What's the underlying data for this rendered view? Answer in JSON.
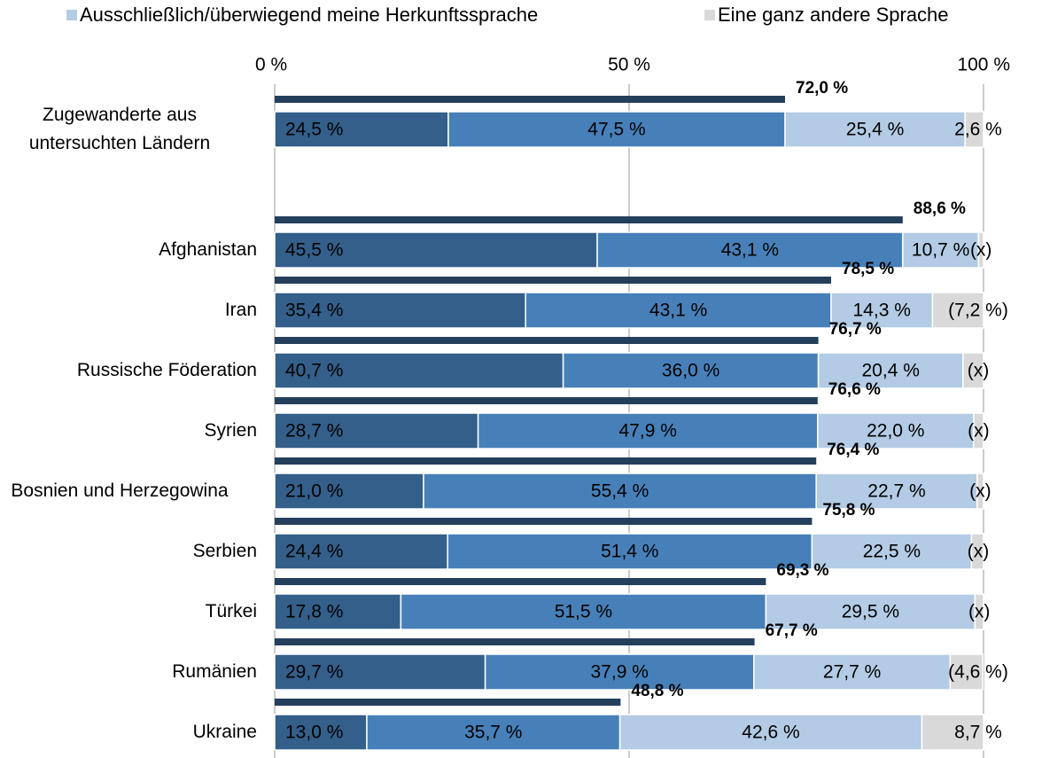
{
  "chart_data": {
    "type": "bar",
    "orientation": "horizontal",
    "stacked": true,
    "categories": [
      "Zugewanderte aus untersuchten Ländern",
      "Afghanistan",
      "Iran",
      "Russische Föderation",
      "Syrien",
      "Bosnien und Herzegowina",
      "Serbien",
      "Türkei",
      "Rumänien",
      "Ukraine"
    ],
    "series": [
      {
        "color": "#335f8a",
        "values": [
          24.5,
          45.5,
          35.4,
          40.7,
          28.7,
          21.0,
          24.4,
          17.8,
          29.7,
          13.0
        ],
        "value_labels": [
          "24,5 %",
          "45,5 %",
          "35,4 %",
          "40,7 %",
          "28,7 %",
          "21,0 %",
          "24,4 %",
          "17,8 %",
          "29,7 %",
          "13,0 %"
        ]
      },
      {
        "color": "#4780b9",
        "values": [
          47.5,
          43.1,
          43.1,
          36.0,
          47.9,
          55.4,
          51.4,
          51.5,
          37.9,
          35.7
        ],
        "value_labels": [
          "47,5 %",
          "43,1 %",
          "43,1 %",
          "36,0 %",
          "47,9 %",
          "55,4 %",
          "51,4 %",
          "51,5 %",
          "37,9 %",
          "35,7 %"
        ]
      },
      {
        "name": "Ausschließlich/überwiegend meine Herkunftssprache",
        "color": "#b3cbe4",
        "values": [
          25.4,
          10.7,
          14.3,
          20.4,
          22.0,
          22.7,
          22.5,
          29.5,
          27.7,
          42.6
        ],
        "value_labels": [
          "25,4 %",
          "10,7 %",
          "14,3 %",
          "20,4 %",
          "22,0 %",
          "22,7 %",
          "22,5 %",
          "29,5 %",
          "27,7 %",
          "42,6 %"
        ]
      },
      {
        "name": "Eine ganz andere Sprache",
        "color": "#d9d9d9",
        "values": [
          2.6,
          0.7,
          7.2,
          2.9,
          1.4,
          0.9,
          1.7,
          1.2,
          4.6,
          8.7
        ],
        "value_labels": [
          "2,6 %",
          "(x)",
          "(7,2 %)",
          "(x)",
          "(x)",
          "(x)",
          "(x)",
          "(x)",
          "(4,6 %)",
          "8,7 %"
        ]
      }
    ],
    "totals": {
      "color": "#243f5c",
      "values": [
        72.0,
        88.6,
        78.5,
        76.7,
        76.6,
        76.4,
        75.8,
        69.3,
        67.7,
        48.8
      ],
      "value_labels": [
        "72,0 %",
        "88,6 %",
        "78,5 %",
        "76,7 %",
        "76,6 %",
        "76,4 %",
        "75,8 %",
        "69,3 %",
        "67,7 %",
        "48,8 %"
      ]
    },
    "xlim": [
      0,
      100
    ],
    "xticks": [
      {
        "value": 0,
        "label": "0 %"
      },
      {
        "value": 50,
        "label": "50 %"
      },
      {
        "value": 100,
        "label": "100 %"
      }
    ],
    "grid": true
  }
}
